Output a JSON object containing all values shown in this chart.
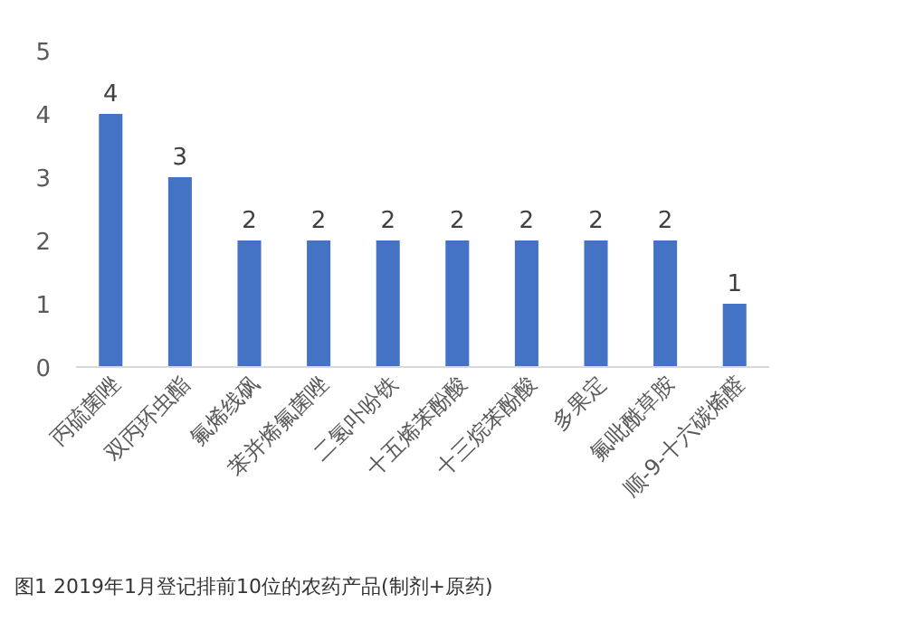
{
  "chart_data": {
    "type": "bar",
    "categories": [
      "丙硫菌唑",
      "双丙环虫酯",
      "氟烯线砜",
      "苯并烯氟菌唑",
      "二氢卟吩铁",
      "十五烯苯酚酸",
      "十三烷苯酚酸",
      "多果定",
      "氟吡酰草胺",
      "顺-9-十六碳烯醛"
    ],
    "values": [
      4,
      3,
      2,
      2,
      2,
      2,
      2,
      2,
      2,
      1
    ],
    "color": "#4472c4",
    "ylim": [
      0,
      5
    ],
    "yticks": [
      0,
      1,
      2,
      3,
      4,
      5
    ],
    "data_labels": true,
    "annotations": [
      "图1  2019年1月登记排前10位的农药产品(制剂+原药)"
    ]
  }
}
